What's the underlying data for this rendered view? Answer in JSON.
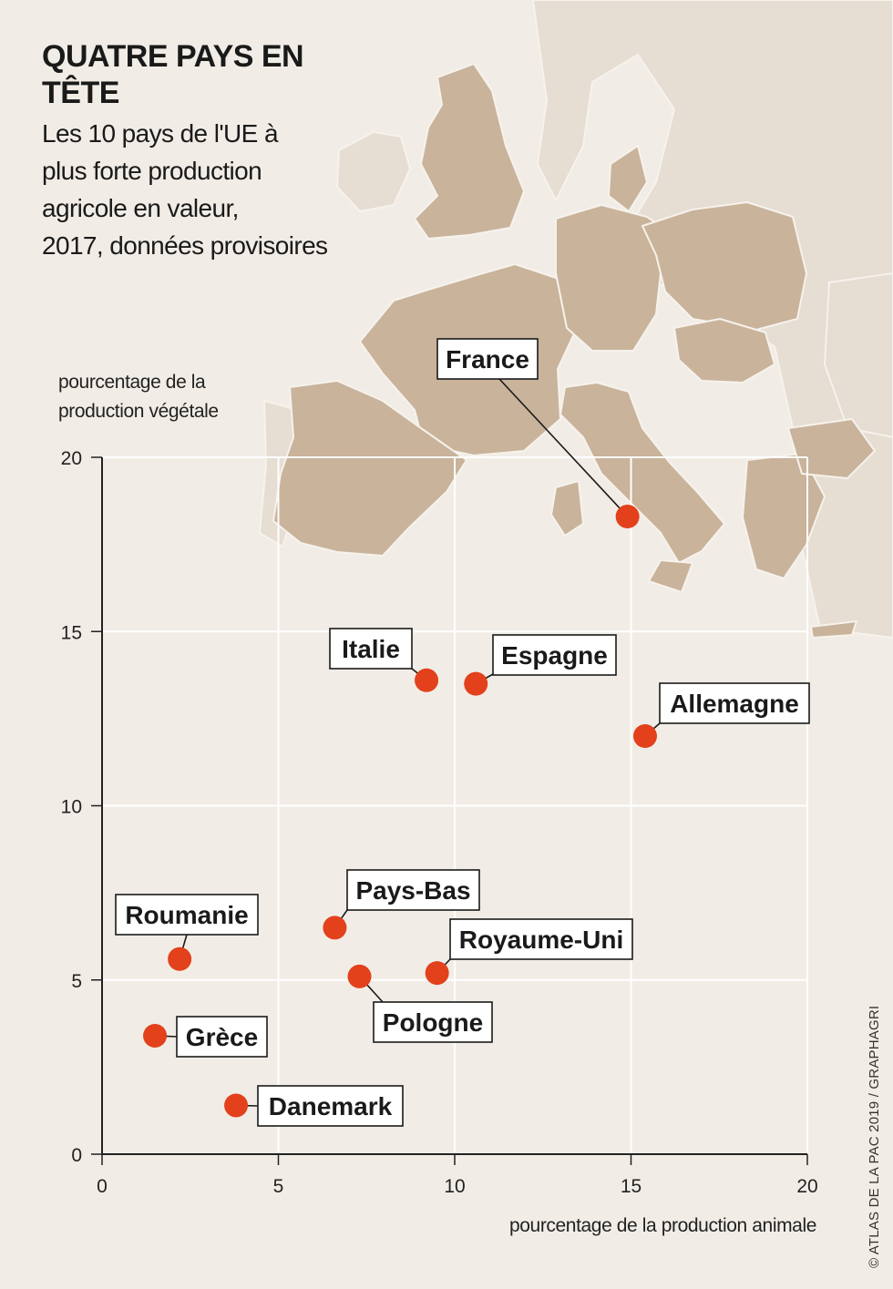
{
  "header": {
    "title": "QUATRE PAYS EN TÊTE",
    "subtitle_lines": [
      "Les 10 pays de l'UE à",
      "plus forte production",
      "agricole en valeur,",
      "2017, données provisoires"
    ]
  },
  "credit": "© ATLAS DE LA PAC 2019 / GRAPHAGRI",
  "colors": {
    "background": "#f1ede6",
    "land": "#c9b39b",
    "land_light": "#e6ddd3",
    "point": "#e3401c"
  },
  "chart_data": {
    "type": "scatter",
    "title": "QUATRE PAYS EN TÊTE",
    "xlabel": "pourcentage de la production animale",
    "ylabel_lines": [
      "pourcentage de la",
      "production végétale"
    ],
    "xlim": [
      0,
      20
    ],
    "ylim": [
      0,
      20
    ],
    "xticks": [
      0,
      5,
      10,
      15,
      20
    ],
    "yticks": [
      0,
      5,
      10,
      15,
      20
    ],
    "grid": true,
    "points": [
      {
        "label": "France",
        "x": 14.9,
        "y": 18.3
      },
      {
        "label": "Italie",
        "x": 9.2,
        "y": 13.6
      },
      {
        "label": "Espagne",
        "x": 10.6,
        "y": 13.5
      },
      {
        "label": "Allemagne",
        "x": 15.4,
        "y": 12.0
      },
      {
        "label": "Pays-Bas",
        "x": 6.6,
        "y": 6.5
      },
      {
        "label": "Roumanie",
        "x": 2.2,
        "y": 5.6
      },
      {
        "label": "Royaume-Uni",
        "x": 9.5,
        "y": 5.2
      },
      {
        "label": "Pologne",
        "x": 7.3,
        "y": 5.1
      },
      {
        "label": "Grèce",
        "x": 1.5,
        "y": 3.4
      },
      {
        "label": "Danemark",
        "x": 3.8,
        "y": 1.4
      }
    ]
  }
}
